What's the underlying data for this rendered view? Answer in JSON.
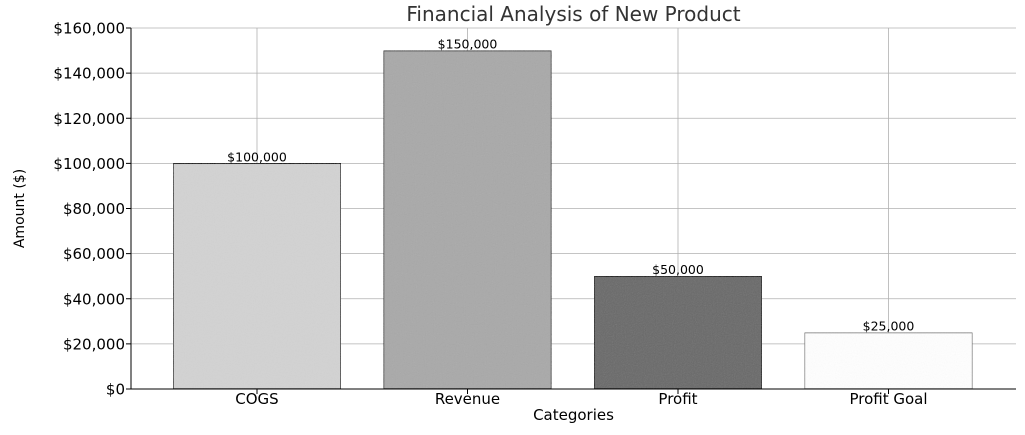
{
  "chart_data": {
    "type": "bar",
    "title": "Financial Analysis of New Product",
    "xlabel": "Categories",
    "ylabel": "Amount ($)",
    "categories": [
      "COGS",
      "Revenue",
      "Profit",
      "Profit Goal"
    ],
    "values": [
      100000,
      150000,
      50000,
      25000
    ],
    "data_labels": [
      "$100,000",
      "$150,000",
      "$50,000",
      "$25,000"
    ],
    "ylim": [
      0,
      160000
    ],
    "y_ticks": [
      0,
      20000,
      40000,
      60000,
      80000,
      100000,
      120000,
      140000,
      160000
    ],
    "y_tick_labels": [
      "$0",
      "$20,000",
      "$40,000",
      "$60,000",
      "$80,000",
      "$100,000",
      "$120,000",
      "$140,000",
      "$160,000"
    ],
    "grid": true,
    "bar_colors": [
      "#d3d3d3",
      "#a9a9a9",
      "#696969",
      "#ffffff"
    ],
    "bar_edge_colors": [
      "#000000",
      "#000000",
      "#000000",
      "#696969"
    ]
  }
}
